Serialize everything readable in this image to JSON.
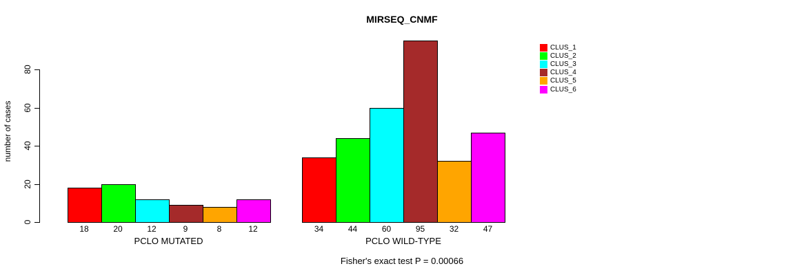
{
  "title": "MIRSEQ_CNMF",
  "footnote": "Fisher's exact test P = 0.00066",
  "chart_data": {
    "type": "bar",
    "title": "MIRSEQ_CNMF",
    "xlabel": "",
    "ylabel": "number of cases",
    "ylim": [
      0,
      95
    ],
    "yticks": [
      0,
      20,
      40,
      60,
      80
    ],
    "grid": false,
    "legend_position": "right",
    "annotation": "Fisher's exact test P = 0.00066",
    "series_names": [
      "CLUS_1",
      "CLUS_2",
      "CLUS_3",
      "CLUS_4",
      "CLUS_5",
      "CLUS_6"
    ],
    "colors": [
      "#FF0000",
      "#00FF00",
      "#00FFFF",
      "#A52A2A",
      "#FFA500",
      "#FF00FF"
    ],
    "groups": [
      {
        "label": "PCLO MUTATED",
        "values": [
          18,
          20,
          12,
          9,
          8,
          12
        ]
      },
      {
        "label": "PCLO WILD-TYPE",
        "values": [
          34,
          44,
          60,
          95,
          32,
          47
        ]
      }
    ]
  }
}
